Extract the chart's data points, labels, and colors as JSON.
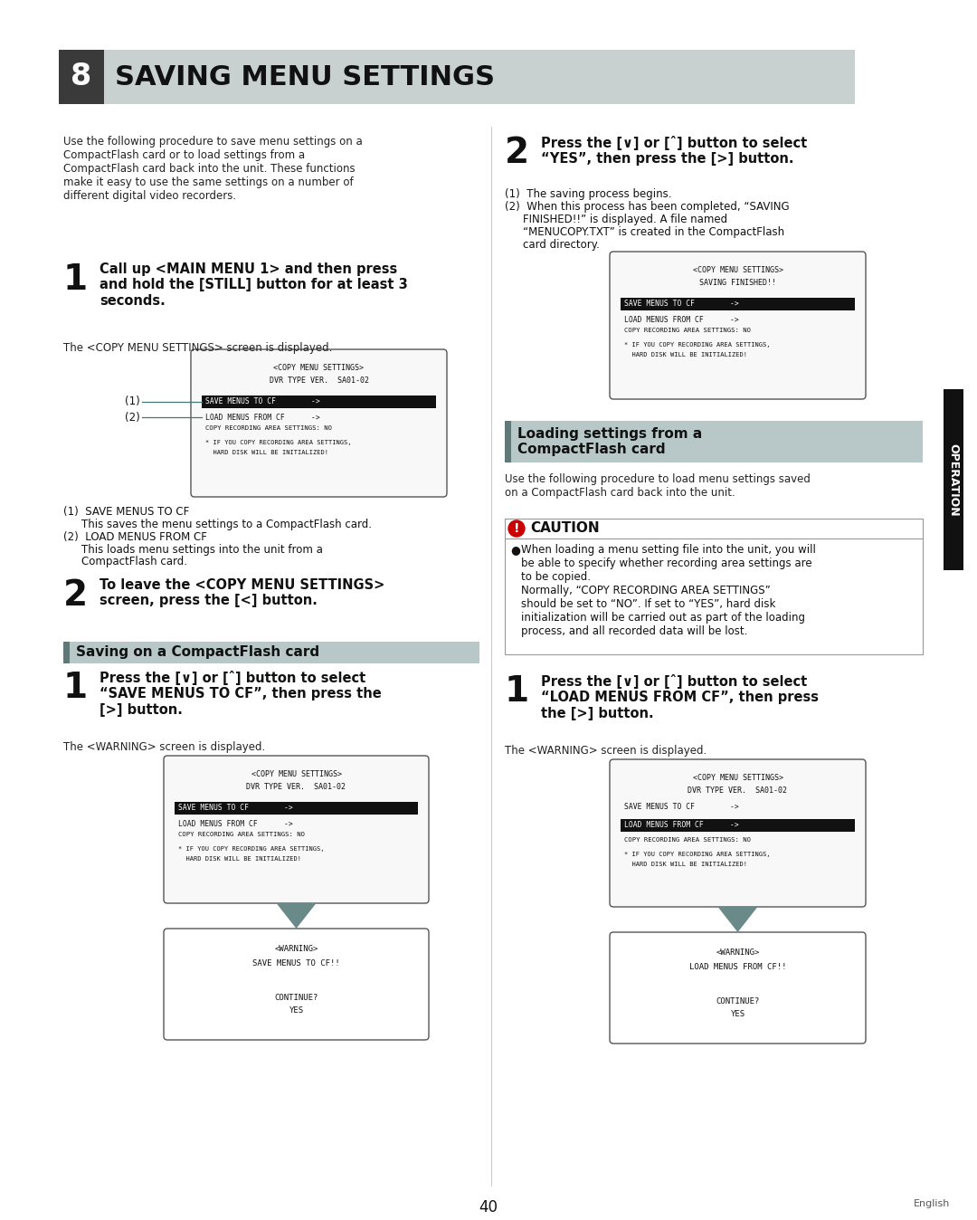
{
  "page_bg": "#ffffff",
  "header_bg": "#c8d0d0",
  "header_num_bg": "#3a3a3a",
  "header_num_text": "#ffffff",
  "header_num": "8",
  "header_title": "SAVING MENU SETTINGS",
  "section2_title": "Saving on a CompactFlash card",
  "section3_title": "Loading settings from a\nCompactFlash card",
  "caution_color": "#cc0000",
  "page_number": "40",
  "right_label": "OPERATION"
}
